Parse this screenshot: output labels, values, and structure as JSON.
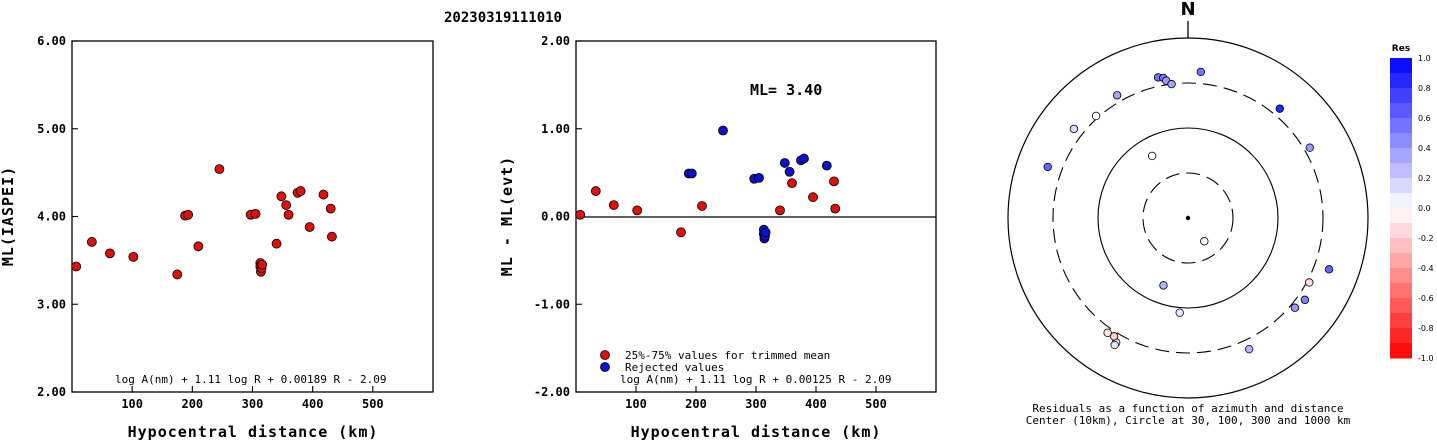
{
  "title": "20230319111010",
  "chart_data": [
    {
      "type": "scatter",
      "xlabel": "Hypocentral distance (km)",
      "ylabel": "ML(IASPEI)",
      "xlim": [
        0,
        600
      ],
      "ylim": [
        2.0,
        6.0
      ],
      "xticks": [
        "100",
        "200",
        "300",
        "400",
        "500"
      ],
      "yticks": [
        "2.00",
        "3.00",
        "4.00",
        "5.00",
        "6.00"
      ],
      "formula": "log A(nm) + 1.11 log R + 0.00189 R - 2.09",
      "series": [
        {
          "color": "#dd1111",
          "points": [
            [
              7,
              3.43
            ],
            [
              33,
              3.71
            ],
            [
              63,
              3.58
            ],
            [
              102,
              3.54
            ],
            [
              175,
              3.34
            ],
            [
              188,
              4.01
            ],
            [
              193,
              4.02
            ],
            [
              210,
              3.66
            ],
            [
              245,
              4.54
            ],
            [
              297,
              4.02
            ],
            [
              305,
              4.03
            ],
            [
              313,
              3.47
            ],
            [
              313,
              3.43
            ],
            [
              314,
              3.37
            ],
            [
              315,
              3.41
            ],
            [
              316,
              3.45
            ],
            [
              340,
              3.69
            ],
            [
              348,
              4.23
            ],
            [
              356,
              4.13
            ],
            [
              360,
              4.02
            ],
            [
              375,
              4.27
            ],
            [
              380,
              4.29
            ],
            [
              395,
              3.88
            ],
            [
              418,
              4.25
            ],
            [
              430,
              4.09
            ],
            [
              432,
              3.77
            ]
          ]
        }
      ]
    },
    {
      "type": "scatter",
      "xlabel": "Hypocentral distance (km)",
      "ylabel": "ML - ML(evt)",
      "xlim": [
        0,
        600
      ],
      "ylim": [
        -2.0,
        2.0
      ],
      "xticks": [
        "100",
        "200",
        "300",
        "400",
        "500"
      ],
      "yticks": [
        "-2.00",
        "-1.00",
        "0.00",
        "1.00",
        "2.00"
      ],
      "ml_label": "ML= 3.40",
      "formula": "log A(nm) + 1.11 log R + 0.00125 R - 2.09",
      "series": [
        {
          "name": "25%-75% values for trimmed mean",
          "color": "#dd1111",
          "points": [
            [
              7,
              0.02
            ],
            [
              33,
              0.29
            ],
            [
              63,
              0.13
            ],
            [
              102,
              0.07
            ],
            [
              175,
              -0.18
            ],
            [
              210,
              0.12
            ],
            [
              340,
              0.07
            ],
            [
              360,
              0.38
            ],
            [
              395,
              0.22
            ],
            [
              430,
              0.4
            ],
            [
              432,
              0.09
            ]
          ]
        },
        {
          "name": "Rejected values",
          "color": "#1111cc",
          "points": [
            [
              188,
              0.49
            ],
            [
              193,
              0.49
            ],
            [
              245,
              0.98
            ],
            [
              297,
              0.43
            ],
            [
              305,
              0.44
            ],
            [
              313,
              -0.15
            ],
            [
              313,
              -0.2
            ],
            [
              314,
              -0.25
            ],
            [
              315,
              -0.22
            ],
            [
              316,
              -0.18
            ],
            [
              348,
              0.61
            ],
            [
              356,
              0.51
            ],
            [
              375,
              0.64
            ],
            [
              380,
              0.66
            ],
            [
              418,
              0.58
            ]
          ]
        }
      ]
    }
  ],
  "polar": {
    "north_label": "N",
    "caption_line1": "Residuals as a function of azimuth and distance",
    "caption_line2": "Center (10km), Circle at 30, 100, 300 and 1000 km",
    "colorbar_title": "Res",
    "colorbar_ticks": [
      "1.0",
      "0.8",
      "0.6",
      "0.4",
      "0.2",
      "0.0",
      "-0.2",
      "-0.4",
      "-0.6",
      "-0.8",
      "-1.0"
    ],
    "points": [
      {
        "az": 5,
        "dist": 420,
        "res": 0.55
      },
      {
        "az": 348,
        "dist": 390,
        "res": 0.55
      },
      {
        "az": 350,
        "dist": 375,
        "res": 0.55
      },
      {
        "az": 351,
        "dist": 345,
        "res": 0.4
      },
      {
        "az": 353,
        "dist": 310,
        "res": 0.35
      },
      {
        "az": 330,
        "dist": 370,
        "res": 0.35
      },
      {
        "az": 318,
        "dist": 330,
        "res": 0.0
      },
      {
        "az": 308,
        "dist": 400,
        "res": 0.15
      },
      {
        "az": 290,
        "dist": 450,
        "res": 0.6
      },
      {
        "az": 330,
        "dist": 60,
        "res": 0.0
      },
      {
        "az": 40,
        "dist": 380,
        "res": 0.85
      },
      {
        "az": 60,
        "dist": 360,
        "res": 0.4
      },
      {
        "az": 110,
        "dist": 460,
        "res": 0.6
      },
      {
        "az": 125,
        "dist": 380,
        "res": 0.5
      },
      {
        "az": 130,
        "dist": 350,
        "res": 0.4
      },
      {
        "az": 118,
        "dist": 330,
        "res": -0.15
      },
      {
        "az": 155,
        "dist": 400,
        "res": 0.3
      },
      {
        "az": 210,
        "dist": 390,
        "res": 0.0
      },
      {
        "az": 212,
        "dist": 350,
        "res": -0.2
      },
      {
        "az": 215,
        "dist": 355,
        "res": -0.1
      },
      {
        "az": 210,
        "dist": 420,
        "res": 0.1
      },
      {
        "az": 200,
        "dist": 60,
        "res": 0.3
      },
      {
        "az": 185,
        "dist": 110,
        "res": 0.1
      },
      {
        "az": 145,
        "dist": 20,
        "res": 0.0
      }
    ]
  }
}
